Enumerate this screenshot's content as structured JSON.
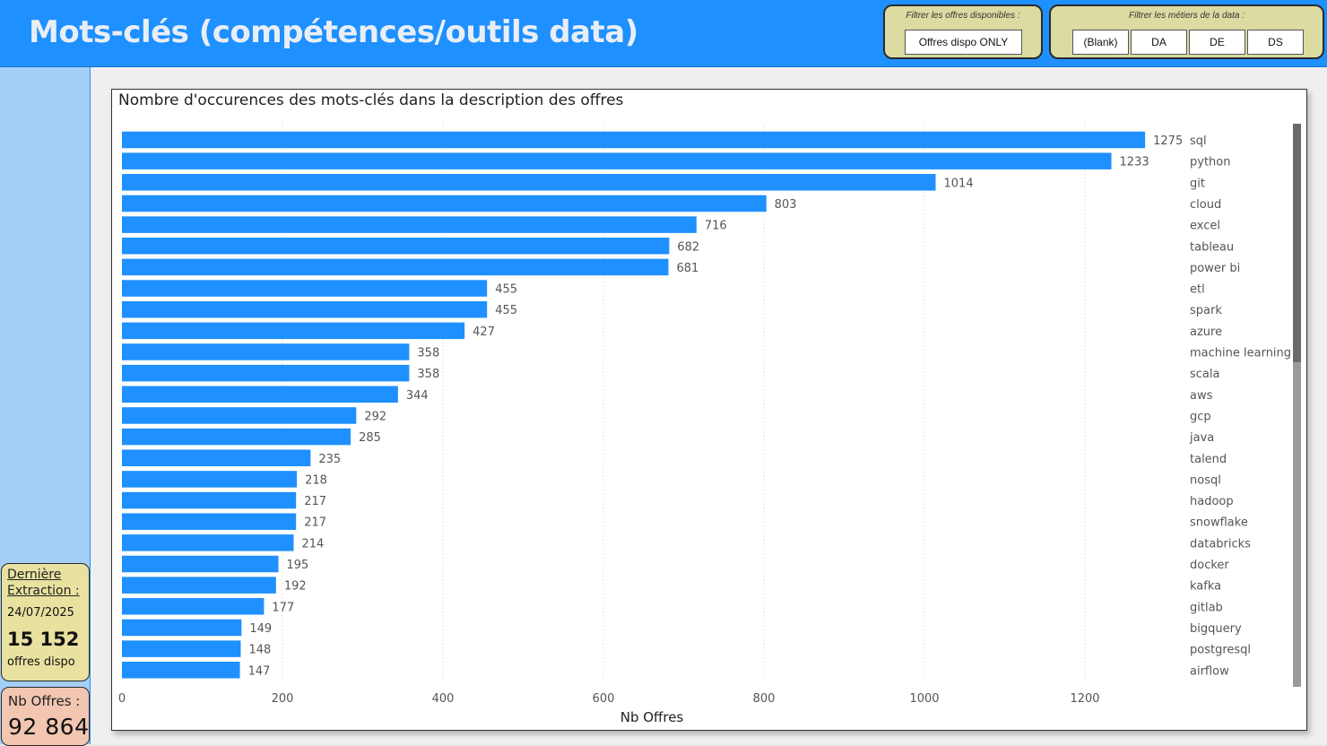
{
  "header": {
    "title": "Mots-clés (compétences/outils data)",
    "filter_offres": {
      "title": "Filtrer les offres disponibles :",
      "button": "Offres dispo ONLY"
    },
    "filter_metiers": {
      "title": "Filtrer les métiers de la data :",
      "buttons": [
        "(Blank)",
        "DA",
        "DE",
        "DS"
      ]
    }
  },
  "sidebar": {
    "extraction": {
      "label_line1": "Dernière",
      "label_line2": "Extraction :",
      "date": "24/07/2025",
      "count": "15 152",
      "count_label": "offres dispo"
    },
    "nb_offres": {
      "label": "Nb Offres :",
      "value": "92 864"
    }
  },
  "colors": {
    "header_bg": "#1e90ff",
    "bar": "#1e90ff",
    "sidebar_bg": "#a4cff7",
    "filter_bg": "#dbdba2",
    "card_extract_bg": "#e8e1a0",
    "card_offres_bg": "#f2c6b0"
  },
  "chart_data": {
    "type": "bar",
    "orientation": "horizontal",
    "title": "Nombre d'occurences des mots-clés dans la description des offres",
    "xlabel": "Nb Offres",
    "ylabel": "",
    "xlim": [
      0,
      1300
    ],
    "xticks": [
      0,
      200,
      400,
      600,
      800,
      1000,
      1200
    ],
    "grid": true,
    "categories": [
      "sql",
      "python",
      "git",
      "cloud",
      "excel",
      "tableau",
      "power bi",
      "etl",
      "spark",
      "azure",
      "machine learning",
      "scala",
      "aws",
      "gcp",
      "java",
      "talend",
      "nosql",
      "hadoop",
      "snowflake",
      "databricks",
      "docker",
      "kafka",
      "gitlab",
      "bigquery",
      "postgresql",
      "airflow"
    ],
    "values": [
      1275,
      1233,
      1014,
      803,
      716,
      682,
      681,
      455,
      455,
      427,
      358,
      358,
      344,
      292,
      285,
      235,
      218,
      217,
      217,
      214,
      195,
      192,
      177,
      149,
      148,
      147
    ]
  }
}
